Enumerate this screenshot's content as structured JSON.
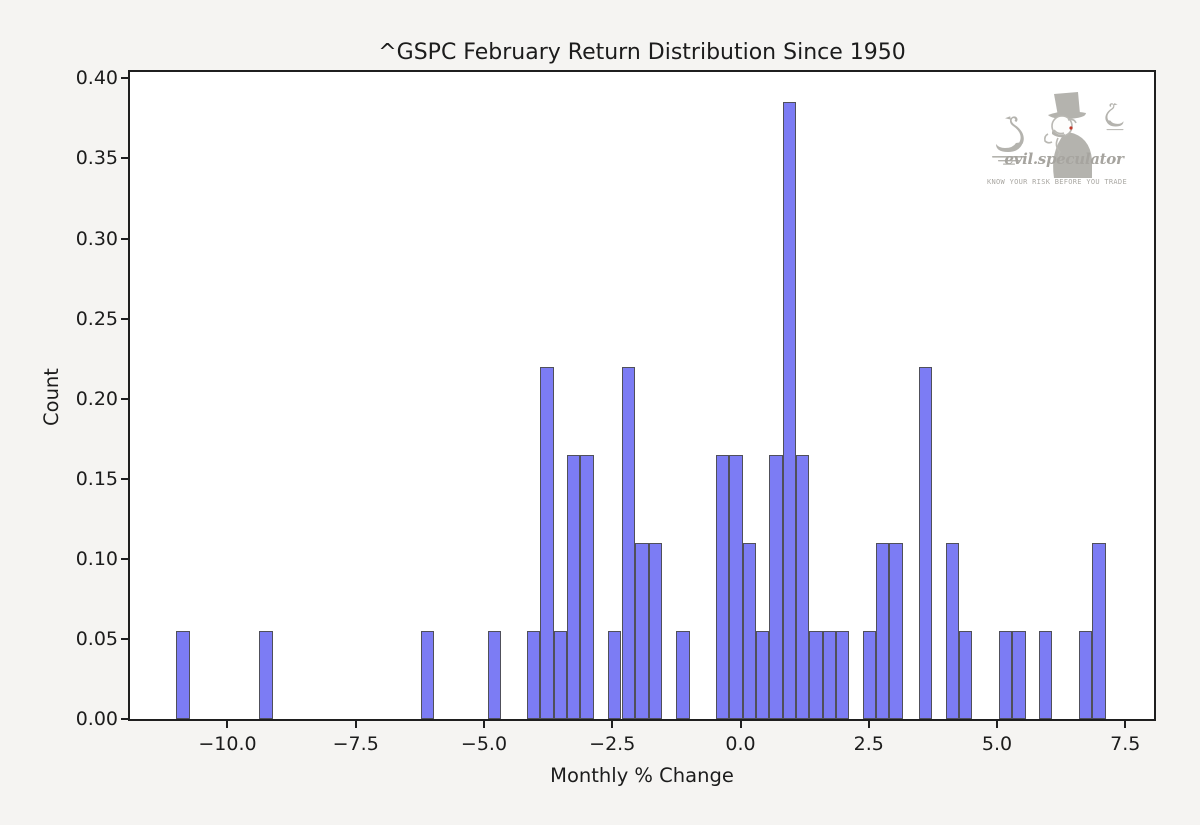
{
  "chart_data": {
    "type": "bar",
    "subtype": "histogram-density",
    "title": "^GSPC February Return Distribution Since 1950",
    "xlabel": "Monthly % Change",
    "ylabel": "Count",
    "xlim": [
      -11.9,
      8.06
    ],
    "ylim": [
      0.0,
      0.404
    ],
    "grid": false,
    "legend": false,
    "bin_width": 0.26,
    "density_per_count": 0.055,
    "bar_fill_color": "#7c7cf4",
    "bar_edge_color": "#50505a",
    "axis_color": "#1f1f1f",
    "figure_background": "#f5f4f2",
    "plot_background": "#ffffff",
    "x_ticks": [
      {
        "value": -10.0,
        "label": "−10.0"
      },
      {
        "value": -7.5,
        "label": "−7.5"
      },
      {
        "value": -5.0,
        "label": "−5.0"
      },
      {
        "value": -2.5,
        "label": "−2.5"
      },
      {
        "value": 0.0,
        "label": "0.0"
      },
      {
        "value": 2.5,
        "label": "2.5"
      },
      {
        "value": 5.0,
        "label": "5.0"
      },
      {
        "value": 7.5,
        "label": "7.5"
      }
    ],
    "y_ticks": [
      {
        "value": 0.0,
        "label": "0.00"
      },
      {
        "value": 0.05,
        "label": "0.05"
      },
      {
        "value": 0.1,
        "label": "0.10"
      },
      {
        "value": 0.15,
        "label": "0.15"
      },
      {
        "value": 0.2,
        "label": "0.20"
      },
      {
        "value": 0.25,
        "label": "0.25"
      },
      {
        "value": 0.3,
        "label": "0.30"
      },
      {
        "value": 0.35,
        "label": "0.35"
      },
      {
        "value": 0.4,
        "label": "0.40"
      }
    ],
    "bars": [
      {
        "center": -10.87,
        "count": 1,
        "height": 0.055
      },
      {
        "center": -9.25,
        "count": 1,
        "height": 0.055
      },
      {
        "center": -6.1,
        "count": 1,
        "height": 0.055
      },
      {
        "center": -4.8,
        "count": 1,
        "height": 0.055
      },
      {
        "center": -4.03,
        "count": 1,
        "height": 0.055
      },
      {
        "center": -3.77,
        "count": 4,
        "height": 0.22
      },
      {
        "center": -3.51,
        "count": 1,
        "height": 0.055
      },
      {
        "center": -3.25,
        "count": 3,
        "height": 0.165
      },
      {
        "center": -2.99,
        "count": 3,
        "height": 0.165
      },
      {
        "center": -2.46,
        "count": 1,
        "height": 0.055
      },
      {
        "center": -2.18,
        "count": 4,
        "height": 0.22
      },
      {
        "center": -1.92,
        "count": 2,
        "height": 0.11
      },
      {
        "center": -1.66,
        "count": 2,
        "height": 0.11
      },
      {
        "center": -1.12,
        "count": 1,
        "height": 0.055
      },
      {
        "center": -0.35,
        "count": 3,
        "height": 0.165
      },
      {
        "center": -0.09,
        "count": 3,
        "height": 0.165
      },
      {
        "center": 0.17,
        "count": 2,
        "height": 0.11
      },
      {
        "center": 0.43,
        "count": 1,
        "height": 0.055
      },
      {
        "center": 0.69,
        "count": 3,
        "height": 0.165
      },
      {
        "center": 0.95,
        "count": 7,
        "height": 0.385
      },
      {
        "center": 1.21,
        "count": 3,
        "height": 0.165
      },
      {
        "center": 1.47,
        "count": 1,
        "height": 0.055
      },
      {
        "center": 1.73,
        "count": 1,
        "height": 0.055
      },
      {
        "center": 1.99,
        "count": 1,
        "height": 0.055
      },
      {
        "center": 2.51,
        "count": 1,
        "height": 0.055
      },
      {
        "center": 2.77,
        "count": 2,
        "height": 0.11
      },
      {
        "center": 3.03,
        "count": 2,
        "height": 0.11
      },
      {
        "center": 3.6,
        "count": 4,
        "height": 0.22
      },
      {
        "center": 4.13,
        "count": 2,
        "height": 0.11
      },
      {
        "center": 4.39,
        "count": 1,
        "height": 0.055
      },
      {
        "center": 5.17,
        "count": 1,
        "height": 0.055
      },
      {
        "center": 5.43,
        "count": 1,
        "height": 0.055
      },
      {
        "center": 5.95,
        "count": 1,
        "height": 0.055
      },
      {
        "center": 6.73,
        "count": 1,
        "height": 0.055
      },
      {
        "center": 6.99,
        "count": 2,
        "height": 0.11
      }
    ]
  },
  "watermark": {
    "brand": "evil.speculator",
    "tagline": "KNOW YOUR RISK BEFORE YOU TRADE",
    "art_color": "#b4b3ae",
    "accent_color": "#c0392b"
  }
}
